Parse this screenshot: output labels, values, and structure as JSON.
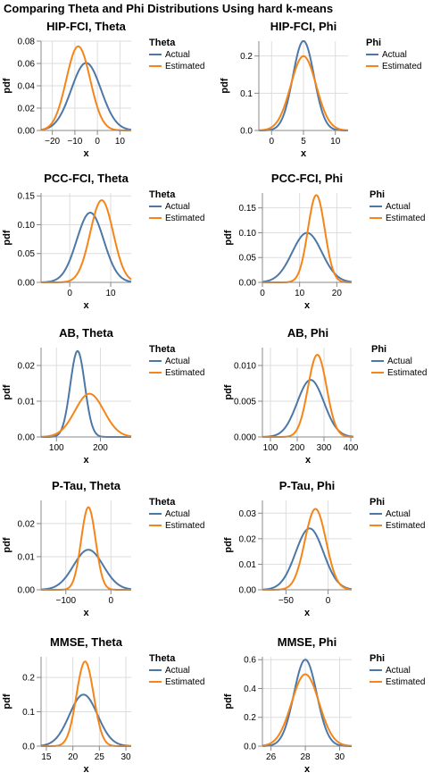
{
  "page": {
    "title": "Comparing Theta and Phi Distributions Using hard k-means"
  },
  "colors": {
    "actual": "#4c78a8",
    "estimated": "#f58518",
    "grid": "#dddddd",
    "axis": "#888888"
  },
  "chart_data": [
    {
      "type": "line",
      "title": "HIP-FCI, Theta",
      "xlabel": "x",
      "ylabel": "pdf",
      "xlim": [
        -25,
        15
      ],
      "ylim": [
        0,
        0.08
      ],
      "xticks": [
        -20,
        -10,
        0,
        10
      ],
      "yticks": [
        0,
        0.02,
        0.04,
        0.06,
        0.08
      ],
      "xtick_labels": [
        "−20",
        "−10",
        "0",
        "10"
      ],
      "ytick_labels": [
        "0.00",
        "0.02",
        "0.04",
        "0.06",
        "0.08"
      ],
      "legend": {
        "title": "Theta",
        "placement": "right"
      },
      "series": [
        {
          "name": "Actual",
          "color": "#4c78a8",
          "distribution": "normal",
          "mean": -5,
          "sd": 6.6
        },
        {
          "name": "Estimated",
          "color": "#f58518",
          "distribution": "normal",
          "mean": -8.5,
          "sd": 5.3
        }
      ]
    },
    {
      "type": "line",
      "title": "HIP-FCI, Phi",
      "xlabel": "x",
      "ylabel": "pdf",
      "xlim": [
        -2,
        12
      ],
      "ylim": [
        0,
        0.24
      ],
      "xticks": [
        0,
        5,
        10
      ],
      "yticks": [
        0,
        0.1,
        0.2
      ],
      "xtick_labels": [
        "0",
        "5",
        "10"
      ],
      "ytick_labels": [
        "0.0",
        "0.1",
        "0.2"
      ],
      "legend": {
        "title": "Phi",
        "placement": "right"
      },
      "series": [
        {
          "name": "Actual",
          "color": "#4c78a8",
          "distribution": "normal",
          "mean": 5,
          "sd": 1.66
        },
        {
          "name": "Estimated",
          "color": "#f58518",
          "distribution": "normal",
          "mean": 5,
          "sd": 2.0
        }
      ]
    },
    {
      "type": "line",
      "title": "PCC-FCI, Theta",
      "xlabel": "x",
      "ylabel": "pdf",
      "xlim": [
        -7,
        15
      ],
      "ylim": [
        0,
        0.155
      ],
      "xticks": [
        0,
        10
      ],
      "yticks": [
        0,
        0.05,
        0.1,
        0.15
      ],
      "xtick_labels": [
        "0",
        "10"
      ],
      "ytick_labels": [
        "0.00",
        "0.05",
        "0.10",
        "0.15"
      ],
      "legend": {
        "title": "Theta",
        "placement": "right"
      },
      "series": [
        {
          "name": "Actual",
          "color": "#4c78a8",
          "distribution": "normal",
          "mean": 5,
          "sd": 3.3
        },
        {
          "name": "Estimated",
          "color": "#f58518",
          "distribution": "normal",
          "mean": 7.8,
          "sd": 2.8
        }
      ]
    },
    {
      "type": "line",
      "title": "PCC-FCI, Phi",
      "xlabel": "x",
      "ylabel": "pdf",
      "xlim": [
        0,
        24
      ],
      "ylim": [
        0,
        0.18
      ],
      "xticks": [
        0,
        10,
        20
      ],
      "yticks": [
        0,
        0.05,
        0.1,
        0.15
      ],
      "xtick_labels": [
        "0",
        "10",
        "20"
      ],
      "ytick_labels": [
        "0.00",
        "0.05",
        "0.10",
        "0.15"
      ],
      "legend": {
        "title": "Phi",
        "placement": "right"
      },
      "series": [
        {
          "name": "Actual",
          "color": "#4c78a8",
          "distribution": "normal",
          "mean": 12,
          "sd": 4.0
        },
        {
          "name": "Estimated",
          "color": "#f58518",
          "distribution": "normal",
          "mean": 14.5,
          "sd": 2.27
        }
      ]
    },
    {
      "type": "line",
      "title": "AB, Theta",
      "xlabel": "x",
      "ylabel": "pdf",
      "xlim": [
        65,
        270
      ],
      "ylim": [
        0,
        0.025
      ],
      "xticks": [
        100,
        200
      ],
      "yticks": [
        0,
        0.01,
        0.02
      ],
      "xtick_labels": [
        "100",
        "200"
      ],
      "ytick_labels": [
        "0.00",
        "0.01",
        "0.02"
      ],
      "legend": {
        "title": "Theta",
        "placement": "right"
      },
      "series": [
        {
          "name": "Actual",
          "color": "#4c78a8",
          "distribution": "normal",
          "mean": 148,
          "sd": 16.6
        },
        {
          "name": "Estimated",
          "color": "#f58518",
          "distribution": "normal",
          "mean": 175,
          "sd": 33
        }
      ]
    },
    {
      "type": "line",
      "title": "AB, Phi",
      "xlabel": "x",
      "ylabel": "pdf",
      "xlim": [
        70,
        410
      ],
      "ylim": [
        0,
        0.0125
      ],
      "xticks": [
        100,
        200,
        300,
        400
      ],
      "yticks": [
        0,
        0.005,
        0.01
      ],
      "xtick_labels": [
        "100",
        "200",
        "300",
        "400"
      ],
      "ytick_labels": [
        "0.000",
        "0.005",
        "0.010"
      ],
      "legend": {
        "title": "Phi",
        "placement": "right"
      },
      "series": [
        {
          "name": "Actual",
          "color": "#4c78a8",
          "distribution": "normal",
          "mean": 250,
          "sd": 50
        },
        {
          "name": "Estimated",
          "color": "#f58518",
          "distribution": "normal",
          "mean": 275,
          "sd": 34.7
        }
      ]
    },
    {
      "type": "line",
      "title": "P-Tau, Theta",
      "xlabel": "x",
      "ylabel": "pdf",
      "xlim": [
        -155,
        45
      ],
      "ylim": [
        0,
        0.027
      ],
      "xticks": [
        -100,
        0
      ],
      "yticks": [
        0,
        0.01,
        0.02
      ],
      "xtick_labels": [
        "−100",
        "0"
      ],
      "ytick_labels": [
        "0.00",
        "0.01",
        "0.02"
      ],
      "legend": {
        "title": "Theta",
        "placement": "right"
      },
      "series": [
        {
          "name": "Actual",
          "color": "#4c78a8",
          "distribution": "normal",
          "mean": -50,
          "sd": 33
        },
        {
          "name": "Estimated",
          "color": "#f58518",
          "distribution": "normal",
          "mean": -50,
          "sd": 16
        }
      ]
    },
    {
      "type": "line",
      "title": "P-Tau, Phi",
      "xlabel": "x",
      "ylabel": "pdf",
      "xlim": [
        -78,
        28
      ],
      "ylim": [
        0,
        0.035
      ],
      "xticks": [
        -50,
        0
      ],
      "yticks": [
        0,
        0.01,
        0.02,
        0.03
      ],
      "xtick_labels": [
        "−50",
        "0"
      ],
      "ytick_labels": [
        "0.00",
        "0.01",
        "0.02",
        "0.03"
      ],
      "legend": {
        "title": "Phi",
        "placement": "right"
      },
      "series": [
        {
          "name": "Actual",
          "color": "#4c78a8",
          "distribution": "normal",
          "mean": -22,
          "sd": 16.6
        },
        {
          "name": "Estimated",
          "color": "#f58518",
          "distribution": "normal",
          "mean": -15,
          "sd": 12.6
        }
      ]
    },
    {
      "type": "line",
      "title": "MMSE, Theta",
      "xlabel": "x",
      "ylabel": "pdf",
      "xlim": [
        14,
        31
      ],
      "ylim": [
        0,
        0.26
      ],
      "xticks": [
        15,
        20,
        25,
        30
      ],
      "yticks": [
        0,
        0.1,
        0.2
      ],
      "xtick_labels": [
        "15",
        "20",
        "25",
        "30"
      ],
      "ytick_labels": [
        "0.0",
        "0.1",
        "0.2"
      ],
      "legend": {
        "title": "Theta",
        "placement": "right"
      },
      "series": [
        {
          "name": "Actual",
          "color": "#4c78a8",
          "distribution": "normal",
          "mean": 22,
          "sd": 2.66
        },
        {
          "name": "Estimated",
          "color": "#f58518",
          "distribution": "normal",
          "mean": 22.3,
          "sd": 1.62
        }
      ]
    },
    {
      "type": "line",
      "title": "MMSE, Phi",
      "xlabel": "x",
      "ylabel": "pdf",
      "xlim": [
        25.5,
        30.7
      ],
      "ylim": [
        0,
        0.62
      ],
      "xticks": [
        26,
        28,
        30
      ],
      "yticks": [
        0,
        0.2,
        0.4,
        0.6
      ],
      "xtick_labels": [
        "26",
        "28",
        "30"
      ],
      "ytick_labels": [
        "0.0",
        "0.2",
        "0.4",
        "0.6"
      ],
      "legend": {
        "title": "Phi",
        "placement": "right"
      },
      "series": [
        {
          "name": "Actual",
          "color": "#4c78a8",
          "distribution": "normal",
          "mean": 28,
          "sd": 0.665
        },
        {
          "name": "Estimated",
          "color": "#f58518",
          "distribution": "normal",
          "mean": 28,
          "sd": 0.8
        }
      ]
    }
  ]
}
